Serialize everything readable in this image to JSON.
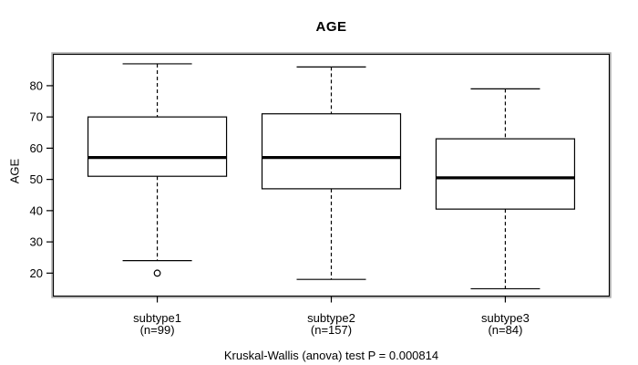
{
  "chart_data": {
    "type": "boxplot",
    "title": "AGE",
    "ylabel": "AGE",
    "caption": "Kruskal-Wallis (anova) test P = 0.000814",
    "p_value": "0.000814",
    "yticks": [
      20,
      30,
      40,
      50,
      60,
      70,
      80
    ],
    "ylim": [
      12.5,
      90.2
    ],
    "xlim": [
      0.4,
      3.6
    ],
    "grid": false,
    "colors": {
      "line": "#000000",
      "box_fill": "#ffffff",
      "frame_halo": "#a9a9a9",
      "background": "#ffffff"
    },
    "groups": [
      {
        "label": "subtype1",
        "sublabel": "(n=99)",
        "n": 99,
        "position": 1,
        "whisker_low": 24,
        "q1": 51,
        "median": 57,
        "q3": 70,
        "whisker_high": 87,
        "outliers": [
          20
        ]
      },
      {
        "label": "subtype2",
        "sublabel": "(n=157)",
        "n": 157,
        "position": 2,
        "whisker_low": 18,
        "q1": 47,
        "median": 57,
        "q3": 71,
        "whisker_high": 86,
        "outliers": []
      },
      {
        "label": "subtype3",
        "sublabel": "(n=84)",
        "n": 84,
        "position": 3,
        "whisker_low": 15,
        "q1": 40.5,
        "median": 50.5,
        "q3": 63,
        "whisker_high": 79,
        "outliers": []
      }
    ]
  }
}
